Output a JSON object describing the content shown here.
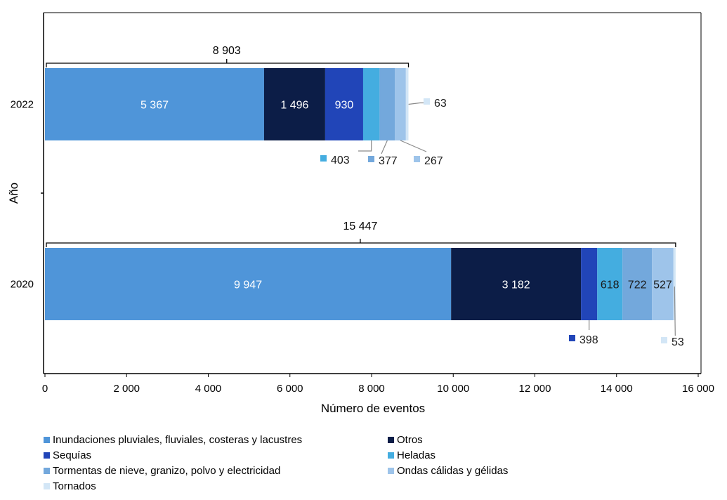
{
  "chart_data": {
    "type": "bar",
    "orientation": "horizontal",
    "stacked": true,
    "categories": [
      "2022",
      "2020"
    ],
    "totals": [
      "8 903",
      "15 447"
    ],
    "total_values": [
      8903,
      15447
    ],
    "xlabel": "Número de eventos",
    "ylabel": "Año",
    "xlim": [
      0,
      16000
    ],
    "xticks": [
      "0",
      "2 000",
      "4 000",
      "6 000",
      "8 000",
      "10 000",
      "12 000",
      "14 000",
      "16 000"
    ],
    "xtick_values": [
      0,
      2000,
      4000,
      6000,
      8000,
      10000,
      12000,
      14000,
      16000
    ],
    "grid": false,
    "legend_position": "bottom",
    "series": [
      {
        "name": "Inundaciones pluviales, fluviales, costeras y lacustres",
        "color": "#4f95d9",
        "values": [
          5367,
          9947
        ],
        "labels": [
          "5 367",
          "9 947"
        ]
      },
      {
        "name": "Otros",
        "color": "#0c1d47",
        "values": [
          1496,
          3182
        ],
        "labels": [
          "1 496",
          "3 182"
        ]
      },
      {
        "name": "Sequías",
        "color": "#2145b8",
        "values": [
          930,
          398
        ],
        "labels": [
          "930",
          "398"
        ]
      },
      {
        "name": "Heladas",
        "color": "#44ade0",
        "values": [
          403,
          618
        ],
        "labels": [
          "403",
          "618"
        ]
      },
      {
        "name": "Tormentas de nieve, granizo, polvo y electricidad",
        "color": "#73a8dc",
        "values": [
          377,
          722
        ],
        "labels": [
          "377",
          "722"
        ]
      },
      {
        "name": "Ondas cálidas y gélidas",
        "color": "#9ec4ea",
        "values": [
          267,
          527
        ],
        "labels": [
          "267",
          "527"
        ]
      },
      {
        "name": "Tornados",
        "color": "#d3e6f6",
        "values": [
          63,
          53
        ],
        "labels": [
          "63",
          "53"
        ]
      }
    ]
  }
}
